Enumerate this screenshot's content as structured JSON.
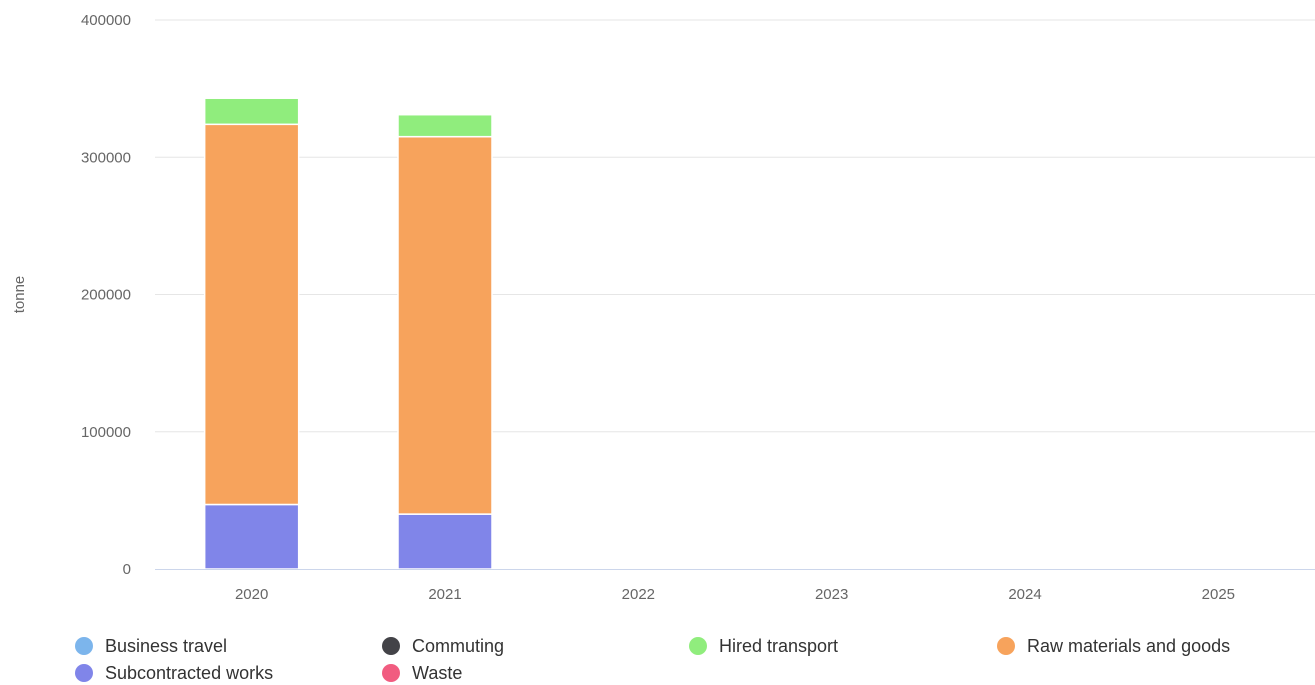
{
  "chart_data": {
    "type": "bar",
    "stacked": true,
    "ylabel": "tonne",
    "ylim": [
      0,
      400000
    ],
    "yticks": [
      "0",
      "100000",
      "200000",
      "300000",
      "400000"
    ],
    "categories": [
      "2020",
      "2021",
      "2022",
      "2023",
      "2024",
      "2025"
    ],
    "series": [
      {
        "name": "Business travel",
        "color": "#7cb5ec",
        "values": [
          0,
          0,
          0,
          0,
          0,
          0
        ]
      },
      {
        "name": "Commuting",
        "color": "#434348",
        "values": [
          0,
          0,
          0,
          0,
          0,
          0
        ]
      },
      {
        "name": "Hired transport",
        "color": "#90ed7d",
        "values": [
          19000,
          16000,
          0,
          0,
          0,
          0
        ]
      },
      {
        "name": "Raw materials and goods",
        "color": "#f7a35c",
        "values": [
          277000,
          275000,
          0,
          0,
          0,
          0
        ]
      },
      {
        "name": "Subcontracted works",
        "color": "#8085e9",
        "values": [
          47000,
          40000,
          0,
          0,
          0,
          0
        ]
      },
      {
        "name": "Waste",
        "color": "#f15c80",
        "values": [
          0,
          0,
          0,
          0,
          0,
          0
        ]
      }
    ],
    "stack_order_bottom_to_top": [
      "Waste",
      "Subcontracted works",
      "Raw materials and goods",
      "Hired transport",
      "Commuting",
      "Business travel"
    ],
    "grid": true,
    "legend_position": "bottom"
  }
}
